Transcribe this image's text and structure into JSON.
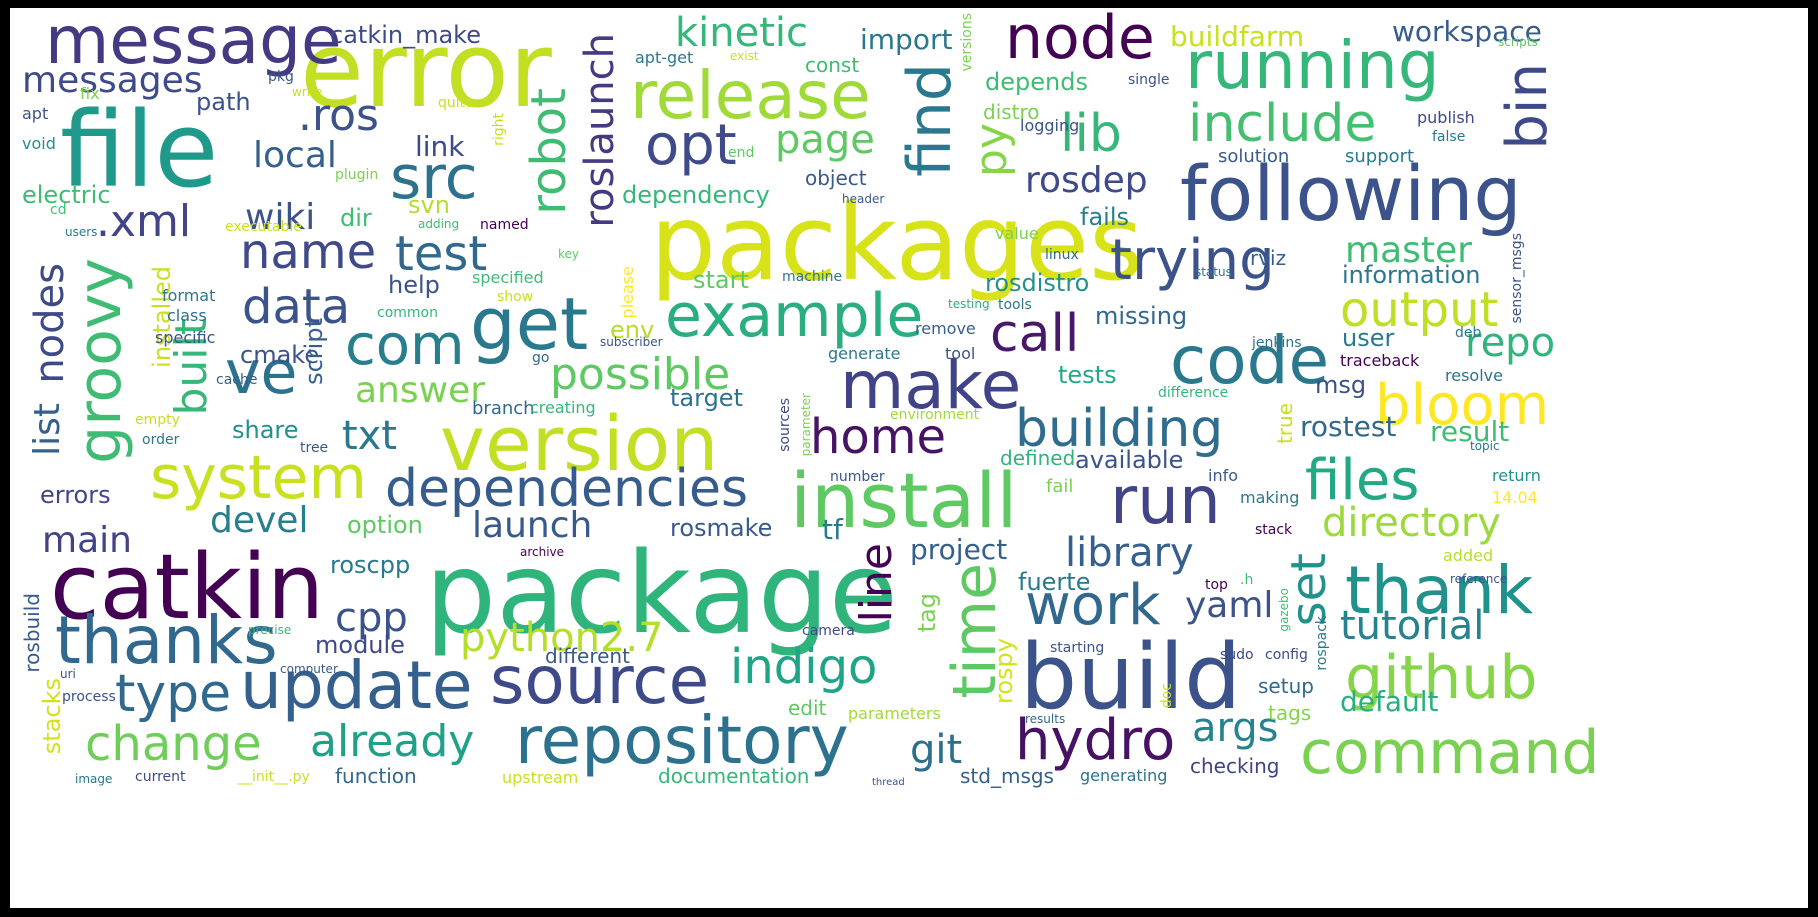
{
  "words": [
    {
      "text": "package",
      "color": "#2fb47c"
    },
    {
      "text": "packages",
      "color": "#d8e219"
    },
    {
      "text": "error",
      "color": "#c2df23"
    },
    {
      "text": "file",
      "color": "#1f9a8a"
    },
    {
      "text": "catkin",
      "color": "#440154"
    },
    {
      "text": "build",
      "color": "#3b528b"
    },
    {
      "text": "following",
      "color": "#3b528b"
    },
    {
      "text": "version",
      "color": "#c2df23"
    },
    {
      "text": "install",
      "color": "#5ec962"
    },
    {
      "text": "update",
      "color": "#355f8d"
    },
    {
      "text": "source",
      "color": "#3e4989"
    },
    {
      "text": "repository",
      "color": "#2c728e"
    },
    {
      "text": "message",
      "color": "#443983"
    },
    {
      "text": "release",
      "color": "#a0da39"
    },
    {
      "text": "running",
      "color": "#35b779"
    },
    {
      "text": "thanks",
      "color": "#31688e"
    },
    {
      "text": "thank",
      "color": "#21918c"
    },
    {
      "text": "run",
      "color": "#414487"
    },
    {
      "text": "code",
      "color": "#2a788e"
    },
    {
      "text": "make",
      "color": "#404387"
    },
    {
      "text": "system",
      "color": "#c8e020"
    },
    {
      "text": "get",
      "color": "#2a788e"
    },
    {
      "text": "example",
      "color": "#29af7f"
    },
    {
      "text": "command",
      "color": "#7ad151"
    },
    {
      "text": "github",
      "color": "#86d549"
    },
    {
      "text": "node",
      "color": "#440154"
    },
    {
      "text": "dependencies",
      "color": "#365c8d"
    },
    {
      "text": "building",
      "color": "#2f6c8e"
    },
    {
      "text": "work",
      "color": "#31688e"
    },
    {
      "text": "hydro",
      "color": "#471164"
    },
    {
      "text": "time",
      "color": "#5ec962"
    },
    {
      "text": "trying",
      "color": "#3b528b"
    },
    {
      "text": "files",
      "color": "#22a884"
    },
    {
      "text": "bloom",
      "color": "#fde725"
    },
    {
      "text": "include",
      "color": "#44bf70"
    },
    {
      "text": "find",
      "color": "#2a788e"
    },
    {
      "text": "src",
      "color": "#2c728e"
    },
    {
      "text": "com",
      "color": "#277f8e"
    },
    {
      "text": "type",
      "color": "#31688e"
    },
    {
      "text": "change",
      "color": "#6ece58"
    },
    {
      "text": "name",
      "color": "#3e4a89"
    },
    {
      "text": "test",
      "color": "#31688e"
    },
    {
      "text": "data",
      "color": "#3b528b"
    },
    {
      "text": "ve",
      "color": "#2c728e"
    },
    {
      "text": "groovy",
      "color": "#3fbc73"
    },
    {
      "text": "opt",
      "color": "#3e4a89"
    },
    {
      "text": "lib",
      "color": "#35b779"
    },
    {
      "text": "bin",
      "color": "#3e4989"
    },
    {
      "text": "output",
      "color": "#bddf26"
    },
    {
      "text": "call",
      "color": "#48186a"
    },
    {
      "text": "indigo",
      "color": "#20a486"
    },
    {
      "text": "already",
      "color": "#1fa187"
    },
    {
      "text": "possible",
      "color": "#5ec962"
    },
    {
      "text": "home",
      "color": "#471365"
    },
    {
      "text": "directory",
      "color": "#9bd93c"
    },
    {
      "text": "tutorial",
      "color": "#26828e"
    },
    {
      "text": "set",
      "color": "#21918c"
    },
    {
      "text": "python2.7",
      "color": "#b5de2b"
    },
    {
      "text": "cpp",
      "color": "#3b528b"
    },
    {
      "text": "library",
      "color": "#355f8d"
    },
    {
      "text": "git",
      "color": "#2e6e8e"
    },
    {
      "text": "args",
      "color": "#25838e"
    },
    {
      "text": "repo",
      "color": "#2fb47c"
    },
    {
      "text": "kinetic",
      "color": "#35b779"
    },
    {
      "text": "page",
      "color": "#5ec962"
    },
    {
      "text": "roslaunch",
      "color": "#443a83"
    },
    {
      "text": "robot",
      "color": "#3fbc73"
    },
    {
      "text": "wiki",
      "color": "#3b528b"
    },
    {
      "text": "local",
      "color": "#355f8d"
    },
    {
      "text": ".ros",
      "color": "#3b528b"
    },
    {
      "text": ".xml",
      "color": "#414487"
    },
    {
      "text": "built",
      "color": "#35b779"
    },
    {
      "text": "nodes",
      "color": "#3e4989"
    },
    {
      "text": "list",
      "color": "#355f8d"
    },
    {
      "text": "messages",
      "color": "#3e4a89"
    },
    {
      "text": "py",
      "color": "#86d549"
    },
    {
      "text": "rosdep",
      "color": "#3e4a89"
    },
    {
      "text": "master",
      "color": "#3fbc73"
    },
    {
      "text": "answer",
      "color": "#7ad151"
    },
    {
      "text": "line",
      "color": "#440154"
    },
    {
      "text": "txt",
      "color": "#2a788e"
    },
    {
      "text": "launch",
      "color": "#38598c"
    },
    {
      "text": "devel",
      "color": "#277f8e"
    },
    {
      "text": "main",
      "color": "#404387"
    },
    {
      "text": "yaml",
      "color": "#3b528b"
    },
    {
      "text": "installed",
      "color": "#c8e020"
    },
    {
      "text": "stacks",
      "color": "#d2e21b"
    },
    {
      "text": "catkin_make",
      "color": "#3e4989"
    },
    {
      "text": "buildfarm",
      "color": "#c8e020"
    },
    {
      "text": "workspace",
      "color": "#365c8d"
    },
    {
      "text": "import",
      "color": "#2a788e"
    },
    {
      "text": "const",
      "color": "#3fbc73"
    },
    {
      "text": "depends",
      "color": "#3fbc73"
    },
    {
      "text": "distro",
      "color": "#7ad151"
    },
    {
      "text": "logging",
      "color": "#3b528b"
    },
    {
      "text": "link",
      "color": "#3e4989"
    },
    {
      "text": "path",
      "color": "#3b528b"
    },
    {
      "text": "electric",
      "color": "#3fbc73"
    },
    {
      "text": "dependency",
      "color": "#35b779"
    },
    {
      "text": "solution",
      "color": "#38598c"
    },
    {
      "text": "support",
      "color": "#2a788e"
    },
    {
      "text": "fails",
      "color": "#277f8e"
    },
    {
      "text": "svn",
      "color": "#b5de2b"
    },
    {
      "text": "dir",
      "color": "#3fbc73"
    },
    {
      "text": "object",
      "color": "#38598c"
    },
    {
      "text": "information",
      "color": "#2a788e"
    },
    {
      "text": "rosdistro",
      "color": "#21918c"
    },
    {
      "text": "help",
      "color": "#3b528b"
    },
    {
      "text": "start",
      "color": "#5ec962"
    },
    {
      "text": "rviz",
      "color": "#355f8d"
    },
    {
      "text": "missing",
      "color": "#31688e"
    },
    {
      "text": "env",
      "color": "#b5de2b"
    },
    {
      "text": "cmake",
      "color": "#3b528b"
    },
    {
      "text": "script",
      "color": "#355f8d"
    },
    {
      "text": "user",
      "color": "#2a788e"
    },
    {
      "text": "msg",
      "color": "#3b528b"
    },
    {
      "text": "tests",
      "color": "#22a884"
    },
    {
      "text": "target",
      "color": "#2c728e"
    },
    {
      "text": "share",
      "color": "#21918c"
    },
    {
      "text": "true",
      "color": "#c8e020"
    },
    {
      "text": "rostest",
      "color": "#31688e"
    },
    {
      "text": "result",
      "color": "#3fbc73"
    },
    {
      "text": "available",
      "color": "#3b528b"
    },
    {
      "text": "defined",
      "color": "#2fb47c"
    },
    {
      "text": "errors",
      "color": "#414487"
    },
    {
      "text": "option",
      "color": "#5ec962"
    },
    {
      "text": "tf",
      "color": "#2a788e"
    },
    {
      "text": "rosmake",
      "color": "#38598c"
    },
    {
      "text": "project",
      "color": "#355f8d"
    },
    {
      "text": "roscpp",
      "color": "#2a788e"
    },
    {
      "text": "fuerte",
      "color": "#2a788e"
    },
    {
      "text": "tag",
      "color": "#7ad151"
    },
    {
      "text": "rospy",
      "color": "#d2e21b"
    },
    {
      "text": "module",
      "color": "#3e4989"
    },
    {
      "text": "different",
      "color": "#38598c"
    },
    {
      "text": "default",
      "color": "#29af7f"
    },
    {
      "text": "setup",
      "color": "#31688e"
    },
    {
      "text": "tags",
      "color": "#86d549"
    },
    {
      "text": "function",
      "color": "#31688e"
    },
    {
      "text": "documentation",
      "color": "#35b779"
    },
    {
      "text": "std_msgs",
      "color": "#355f8d"
    },
    {
      "text": "generating",
      "color": "#2c728e"
    },
    {
      "text": "checking",
      "color": "#404387"
    },
    {
      "text": "upstream",
      "color": "#c8e020"
    },
    {
      "text": "edit",
      "color": "#5ec962"
    },
    {
      "text": "parameters",
      "color": "#a0da39"
    },
    {
      "text": "rosbuild",
      "color": "#38598c"
    },
    {
      "text": "traceback",
      "color": "#440154"
    },
    {
      "text": "resolve",
      "color": "#2c728e"
    },
    {
      "text": "return",
      "color": "#21918c"
    },
    {
      "text": "14.04",
      "color": "#fde725"
    },
    {
      "text": "making",
      "color": "#2a788e"
    },
    {
      "text": "stack",
      "color": "#440154"
    },
    {
      "text": "added",
      "color": "#b5de2b"
    },
    {
      "text": "info",
      "color": "#38598c"
    },
    {
      "text": "fail",
      "color": "#7ad151"
    },
    {
      "text": "environment",
      "color": "#a0da39"
    },
    {
      "text": "difference",
      "color": "#35b779"
    },
    {
      "text": "jenkins",
      "color": "#2c728e"
    },
    {
      "text": "deb",
      "color": "#2a788e"
    },
    {
      "text": "tools",
      "color": "#2a788e"
    },
    {
      "text": "testing",
      "color": "#29af7f"
    },
    {
      "text": "remove",
      "color": "#355f8d"
    },
    {
      "text": "tool",
      "color": "#3b528b"
    },
    {
      "text": "generate",
      "color": "#2a788e"
    },
    {
      "text": "linux",
      "color": "#31688e"
    },
    {
      "text": "status",
      "color": "#2a788e"
    },
    {
      "text": "value",
      "color": "#7ad151"
    },
    {
      "text": "machine",
      "color": "#2a788e"
    },
    {
      "text": "specified",
      "color": "#3fbc73"
    },
    {
      "text": "format",
      "color": "#2a788e"
    },
    {
      "text": "class",
      "color": "#2c728e"
    },
    {
      "text": "specific",
      "color": "#3b528b"
    },
    {
      "text": "common",
      "color": "#35b779"
    },
    {
      "text": "cache",
      "color": "#355f8d"
    },
    {
      "text": "please",
      "color": "#fde725"
    },
    {
      "text": "show",
      "color": "#c8e020"
    },
    {
      "text": "executable",
      "color": "#c8e020"
    },
    {
      "text": "adding",
      "color": "#3fbc73"
    },
    {
      "text": "named",
      "color": "#440154"
    },
    {
      "text": "plugin",
      "color": "#7ad151"
    },
    {
      "text": "end",
      "color": "#5ec962"
    },
    {
      "text": "header",
      "color": "#38598c"
    },
    {
      "text": "quite",
      "color": "#c8e020"
    },
    {
      "text": "single",
      "color": "#3b528b"
    },
    {
      "text": "publish",
      "color": "#3e4989"
    },
    {
      "text": "false",
      "color": "#2a788e"
    },
    {
      "text": "fix",
      "color": "#7ad151"
    },
    {
      "text": "apt",
      "color": "#3b528b"
    },
    {
      "text": "void",
      "color": "#21918c"
    },
    {
      "text": "cd",
      "color": "#3fbc73"
    },
    {
      "text": "pkg",
      "color": "#38598c"
    },
    {
      "text": "write",
      "color": "#c8e020"
    },
    {
      "text": "apt-get",
      "color": "#2a788e"
    },
    {
      "text": "exist",
      "color": "#c8e020"
    },
    {
      "text": "versions",
      "color": "#7ad151"
    },
    {
      "text": "right",
      "color": "#c8e020"
    },
    {
      "text": "branch",
      "color": "#31688e"
    },
    {
      "text": "creating",
      "color": "#35b779"
    },
    {
      "text": "empty",
      "color": "#c8e020"
    },
    {
      "text": "order",
      "color": "#2a788e"
    },
    {
      "text": "tree",
      "color": "#38598c"
    },
    {
      "text": "go",
      "color": "#31688e"
    },
    {
      "text": "subscriber",
      "color": "#3b528b"
    },
    {
      "text": "sources",
      "color": "#3e4989"
    },
    {
      "text": "parameter",
      "color": "#7ad151"
    },
    {
      "text": "number",
      "color": "#3b528b"
    },
    {
      "text": "camera",
      "color": "#3e4989"
    },
    {
      "text": "archive",
      "color": "#440154"
    },
    {
      "text": "precise",
      "color": "#35b779"
    },
    {
      "text": "computer",
      "color": "#38598c"
    },
    {
      "text": "process",
      "color": "#3b528b"
    },
    {
      "text": "image",
      "color": "#2a788e"
    },
    {
      "text": "current",
      "color": "#3e4989"
    },
    {
      "text": "__init__.py",
      "color": "#c8e020"
    },
    {
      "text": "uri",
      "color": "#3b528b"
    },
    {
      "text": "config",
      "color": "#3e4989"
    },
    {
      "text": "doc",
      "color": "#c8e020"
    },
    {
      "text": "results",
      "color": "#31688e"
    },
    {
      "text": "sudo",
      "color": "#3e4989"
    },
    {
      "text": "top",
      "color": "#440154"
    },
    {
      "text": ".h",
      "color": "#3fbc73"
    },
    {
      "text": "gazebo",
      "color": "#3fbc73"
    },
    {
      "text": "rospack",
      "color": "#2a788e"
    },
    {
      "text": "reference",
      "color": "#3b528b"
    },
    {
      "text": "topic",
      "color": "#2c728e"
    },
    {
      "text": "sensor_msgs",
      "color": "#3b528b"
    },
    {
      "text": "scripts",
      "color": "#5ec962"
    },
    {
      "text": "key",
      "color": "#5ec962"
    },
    {
      "text": "users",
      "color": "#2a788e"
    },
    {
      "text": "starting",
      "color": "#3b528b"
    },
    {
      "text": "thread",
      "color": "#3b528b"
    }
  ]
}
